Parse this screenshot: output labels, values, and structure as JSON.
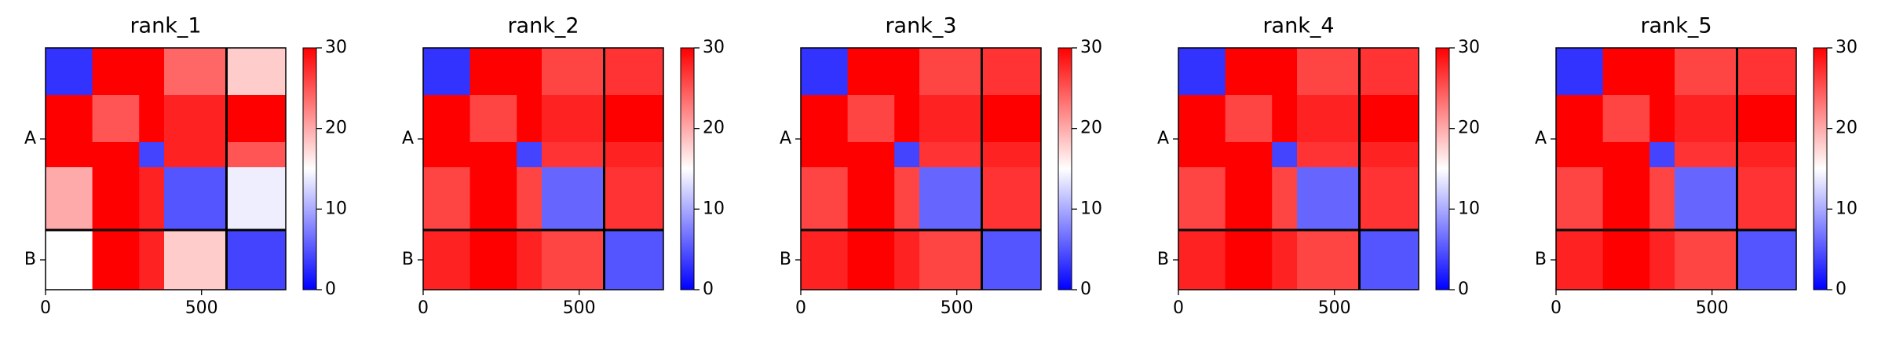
{
  "chart_data": [
    {
      "type": "heatmap",
      "title": "rank_1",
      "colormap": "bwr",
      "bins": [
        0,
        150,
        300,
        380,
        580,
        770
      ],
      "values": [
        [
          3,
          30,
          30,
          24,
          18
        ],
        [
          30,
          25,
          30,
          28,
          30
        ],
        [
          30,
          30,
          4,
          28,
          25
        ],
        [
          20,
          30,
          28,
          5,
          14
        ],
        [
          15,
          30,
          28,
          18,
          4
        ]
      ],
      "xlim": [
        0,
        770
      ],
      "ylim": [
        770,
        0
      ],
      "xticks": [
        0,
        500
      ],
      "yticks": [
        {
          "value": 290,
          "label": "A"
        },
        {
          "value": 675,
          "label": "B"
        }
      ],
      "chain_boundary": 580,
      "clim": [
        0,
        30
      ],
      "cticks": [
        0,
        10,
        20,
        30
      ]
    },
    {
      "type": "heatmap",
      "title": "rank_2",
      "colormap": "bwr",
      "bins": [
        0,
        150,
        300,
        380,
        580,
        770
      ],
      "values": [
        [
          3,
          30,
          30,
          26,
          27
        ],
        [
          30,
          26,
          30,
          28,
          30
        ],
        [
          30,
          30,
          4,
          27,
          28
        ],
        [
          26,
          30,
          26,
          6,
          27
        ],
        [
          28,
          30,
          28,
          26,
          5
        ]
      ],
      "xlim": [
        0,
        770
      ],
      "ylim": [
        770,
        0
      ],
      "xticks": [
        0,
        500
      ],
      "yticks": [
        {
          "value": 290,
          "label": "A"
        },
        {
          "value": 675,
          "label": "B"
        }
      ],
      "chain_boundary": 580,
      "clim": [
        0,
        30
      ],
      "cticks": [
        0,
        10,
        20,
        30
      ]
    },
    {
      "type": "heatmap",
      "title": "rank_3",
      "colormap": "bwr",
      "bins": [
        0,
        150,
        300,
        380,
        580,
        770
      ],
      "values": [
        [
          3,
          30,
          30,
          26,
          27
        ],
        [
          30,
          26,
          30,
          28,
          30
        ],
        [
          30,
          30,
          4,
          27,
          28
        ],
        [
          26,
          30,
          26,
          6,
          27
        ],
        [
          28,
          30,
          28,
          26,
          5
        ]
      ],
      "xlim": [
        0,
        770
      ],
      "ylim": [
        770,
        0
      ],
      "xticks": [
        0,
        500
      ],
      "yticks": [
        {
          "value": 290,
          "label": "A"
        },
        {
          "value": 675,
          "label": "B"
        }
      ],
      "chain_boundary": 580,
      "clim": [
        0,
        30
      ],
      "cticks": [
        0,
        10,
        20,
        30
      ]
    },
    {
      "type": "heatmap",
      "title": "rank_4",
      "colormap": "bwr",
      "bins": [
        0,
        150,
        300,
        380,
        580,
        770
      ],
      "values": [
        [
          3,
          30,
          30,
          26,
          27
        ],
        [
          30,
          26,
          30,
          28,
          30
        ],
        [
          30,
          30,
          4,
          27,
          28
        ],
        [
          26,
          30,
          26,
          6,
          27
        ],
        [
          28,
          30,
          28,
          26,
          5
        ]
      ],
      "xlim": [
        0,
        770
      ],
      "ylim": [
        770,
        0
      ],
      "xticks": [
        0,
        500
      ],
      "yticks": [
        {
          "value": 290,
          "label": "A"
        },
        {
          "value": 675,
          "label": "B"
        }
      ],
      "chain_boundary": 580,
      "clim": [
        0,
        30
      ],
      "cticks": [
        0,
        10,
        20,
        30
      ]
    },
    {
      "type": "heatmap",
      "title": "rank_5",
      "colormap": "bwr",
      "bins": [
        0,
        150,
        300,
        380,
        580,
        770
      ],
      "values": [
        [
          3,
          30,
          30,
          26,
          27
        ],
        [
          30,
          26,
          30,
          28,
          30
        ],
        [
          30,
          30,
          4,
          27,
          28
        ],
        [
          26,
          30,
          26,
          6,
          27
        ],
        [
          28,
          30,
          28,
          26,
          5
        ]
      ],
      "xlim": [
        0,
        770
      ],
      "ylim": [
        770,
        0
      ],
      "xticks": [
        0,
        500
      ],
      "yticks": [
        {
          "value": 290,
          "label": "A"
        },
        {
          "value": 675,
          "label": "B"
        }
      ],
      "chain_boundary": 580,
      "clim": [
        0,
        30
      ],
      "cticks": [
        0,
        10,
        20,
        30
      ]
    }
  ]
}
